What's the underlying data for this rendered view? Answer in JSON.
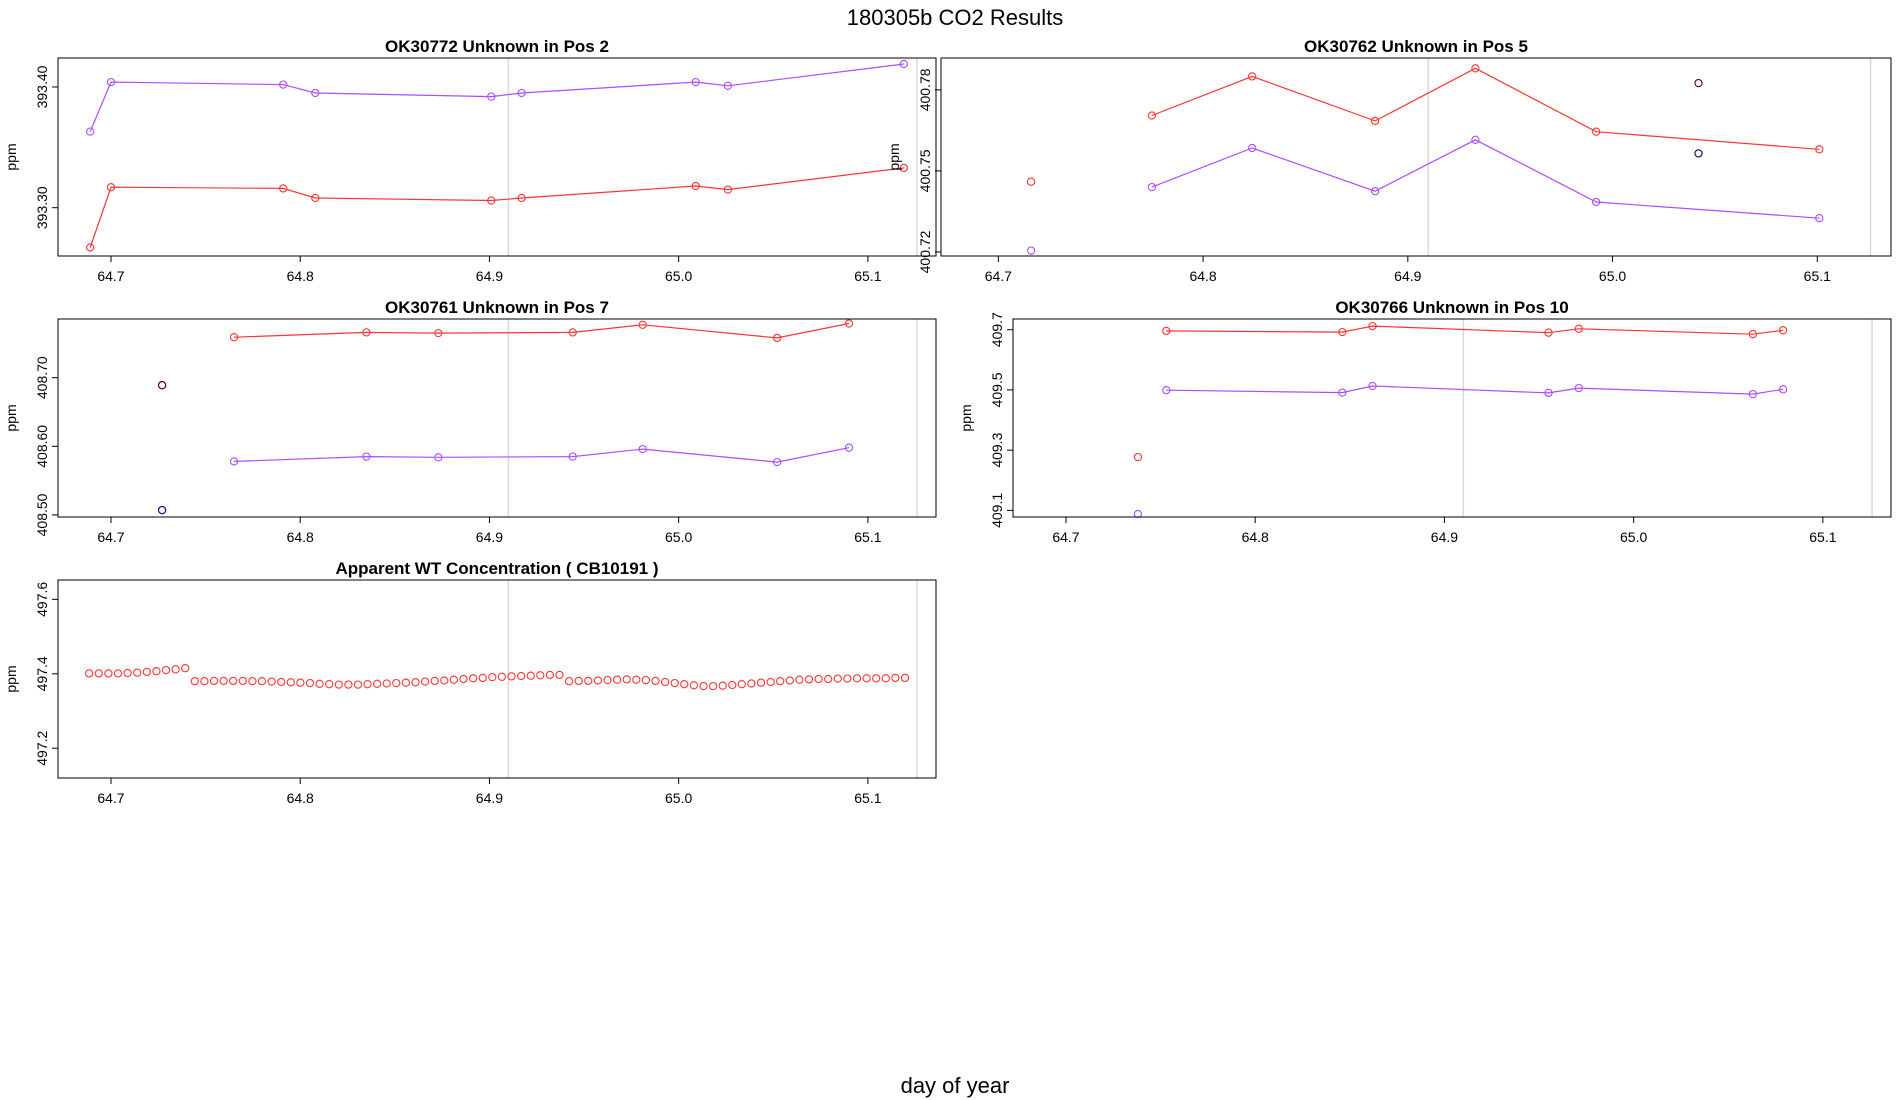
{
  "page": {
    "title": "180305b  CO2 Results",
    "xlabel": "day of year"
  },
  "colors": {
    "red": "#ff3333",
    "purple": "#b04bff",
    "dark_red": "#5a0000",
    "dark_blue": "#1a0066",
    "vline": "#d9d9d9"
  },
  "chart_data": [
    {
      "name": "OK30772",
      "type": "line",
      "title": "OK30772    Unknown in Pos 2",
      "ylabel": "ppm",
      "xlim": [
        64.672,
        65.136
      ],
      "ylim": [
        393.26,
        393.424
      ],
      "xticks": [
        64.7,
        64.8,
        64.9,
        65.0,
        65.1
      ],
      "xtick_labels": [
        "64.7",
        "64.8",
        "64.9",
        "65.0",
        "65.1"
      ],
      "yticks": [
        393.3,
        393.4
      ],
      "ytick_labels": [
        "393.30",
        "393.40"
      ],
      "vlines": [
        64.91,
        65.126
      ],
      "series": [
        {
          "name": "red",
          "color": "#ff3333",
          "connect_from": 0,
          "x": [
            64.689,
            64.7,
            64.791,
            64.808,
            64.901,
            64.917,
            65.009,
            65.026,
            65.119
          ],
          "y": [
            393.267,
            393.317,
            393.316,
            393.308,
            393.306,
            393.308,
            393.318,
            393.315,
            393.333
          ]
        },
        {
          "name": "purple",
          "color": "#b04bff",
          "connect_from": 0,
          "x": [
            64.689,
            64.7,
            64.791,
            64.808,
            64.901,
            64.917,
            65.009,
            65.026,
            65.119
          ],
          "y": [
            393.363,
            393.404,
            393.402,
            393.395,
            393.392,
            393.395,
            393.404,
            393.401,
            393.419
          ]
        }
      ]
    },
    {
      "name": "OK30762",
      "type": "line",
      "title": "OK30762    Unknown in Pos 5",
      "ylabel": "ppm",
      "xlim": [
        64.672,
        65.136
      ],
      "ylim": [
        400.7185,
        400.7918
      ],
      "xticks": [
        64.7,
        64.8,
        64.9,
        65.0,
        65.1
      ],
      "xtick_labels": [
        "64.7",
        "64.8",
        "64.9",
        "65.0",
        "65.1"
      ],
      "yticks": [
        400.72,
        400.75,
        400.78
      ],
      "ytick_labels": [
        "400.72",
        "400.75",
        "400.78"
      ],
      "vlines": [
        64.91,
        65.126
      ],
      "series": [
        {
          "name": "red",
          "color": "#ff3333",
          "connect_from": 1,
          "x": [
            64.716,
            64.775,
            64.824,
            64.884,
            64.933,
            64.992,
            65.101
          ],
          "y": [
            400.746,
            400.7705,
            400.785,
            400.7685,
            400.788,
            400.7645,
            400.758
          ]
        },
        {
          "name": "purple",
          "color": "#b04bff",
          "connect_from": 1,
          "x": [
            64.716,
            64.775,
            64.824,
            64.884,
            64.933,
            64.992,
            65.101
          ],
          "y": [
            400.7205,
            400.744,
            400.7585,
            400.7425,
            400.7615,
            400.7385,
            400.7325
          ]
        },
        {
          "name": "outlier-red",
          "color": "#5a0000",
          "connect_from": 99,
          "x": [
            65.042
          ],
          "y": [
            400.7825
          ]
        },
        {
          "name": "outlier-purple",
          "color": "#1a0066",
          "connect_from": 99,
          "x": [
            65.042
          ],
          "y": [
            400.7565
          ]
        }
      ]
    },
    {
      "name": "OK30761",
      "type": "line",
      "title": "OK30761    Unknown in Pos 7",
      "ylabel": "ppm",
      "xlim": [
        64.672,
        65.136
      ],
      "ylim": [
        408.497,
        408.7855
      ],
      "xticks": [
        64.7,
        64.8,
        64.9,
        65.0,
        65.1
      ],
      "xtick_labels": [
        "64.7",
        "64.8",
        "64.9",
        "65.0",
        "65.1"
      ],
      "yticks": [
        408.5,
        408.6,
        408.7
      ],
      "ytick_labels": [
        "408.50",
        "408.60",
        "408.70"
      ],
      "vlines": [
        64.91,
        65.126
      ],
      "series": [
        {
          "name": "red",
          "color": "#ff3333",
          "connect_from": 1,
          "x": [
            64.727,
            64.765,
            64.835,
            64.873,
            64.944,
            64.981,
            65.052,
            65.09
          ],
          "y": [
            408.689,
            408.759,
            408.766,
            408.765,
            408.766,
            408.777,
            408.758,
            408.779
          ]
        },
        {
          "name": "purple",
          "color": "#b04bff",
          "connect_from": 1,
          "x": [
            64.727,
            64.765,
            64.835,
            64.873,
            64.944,
            64.981,
            65.052,
            65.09
          ],
          "y": [
            408.507,
            408.578,
            408.585,
            408.584,
            408.585,
            408.596,
            408.577,
            408.598
          ]
        },
        {
          "name": "outlier-red",
          "color": "#5a0000",
          "connect_from": 99,
          "x": [
            64.727
          ],
          "y": [
            408.689
          ]
        },
        {
          "name": "outlier-purple",
          "color": "#1a0066",
          "connect_from": 99,
          "x": [
            64.727
          ],
          "y": [
            408.507
          ]
        }
      ]
    },
    {
      "name": "OK30766",
      "type": "line",
      "title": "OK30766    Unknown in Pos 10",
      "ylabel": "ppm",
      "xlim": [
        64.672,
        65.136
      ],
      "ylim": [
        409.078,
        409.7355
      ],
      "xticks": [
        64.7,
        64.8,
        64.9,
        65.0,
        65.1
      ],
      "xtick_labels": [
        "64.7",
        "64.8",
        "64.9",
        "65.0",
        "65.1"
      ],
      "yticks": [
        409.1,
        409.3,
        409.5,
        409.7
      ],
      "ytick_labels": [
        "409.1",
        "409.3",
        "409.5",
        "409.7"
      ],
      "vlines": [
        64.91,
        65.126
      ],
      "series": [
        {
          "name": "red",
          "color": "#ff3333",
          "connect_from": 1,
          "x": [
            64.738,
            64.753,
            64.846,
            64.862,
            64.955,
            64.971,
            65.063,
            65.079
          ],
          "y": [
            409.277,
            409.696,
            409.692,
            409.712,
            409.69,
            409.703,
            409.685,
            409.698
          ]
        },
        {
          "name": "purple",
          "color": "#b04bff",
          "connect_from": 1,
          "x": [
            64.738,
            64.753,
            64.846,
            64.862,
            64.955,
            64.971,
            65.063,
            65.079
          ],
          "y": [
            409.088,
            409.499,
            409.491,
            409.513,
            409.49,
            409.506,
            409.486,
            409.502
          ]
        }
      ]
    },
    {
      "name": "WT",
      "type": "scatter",
      "title": "Apparent WT Concentration ( CB10191 )",
      "ylabel": "ppm",
      "xlim": [
        64.672,
        65.136
      ],
      "ylim": [
        497.12,
        497.652
      ],
      "xticks": [
        64.7,
        64.8,
        64.9,
        65.0,
        65.1
      ],
      "xtick_labels": [
        "64.7",
        "64.8",
        "64.9",
        "65.0",
        "65.1"
      ],
      "yticks": [
        497.2,
        497.4,
        497.6
      ],
      "ytick_labels": [
        "497.2",
        "497.4",
        "497.6"
      ],
      "vlines": [
        64.91,
        65.126
      ],
      "series": [
        {
          "name": "red",
          "color": "#ff3333",
          "connect_from": 99,
          "x_start": 64.6885,
          "x_step": 0.005072,
          "y": [
            497.401,
            497.401,
            497.401,
            497.401,
            497.402,
            497.403,
            497.405,
            497.407,
            497.41,
            497.412,
            497.415,
            497.38,
            497.38,
            497.381,
            497.381,
            497.381,
            497.381,
            497.38,
            497.38,
            497.379,
            497.378,
            497.377,
            497.376,
            497.375,
            497.373,
            497.372,
            497.371,
            497.371,
            497.371,
            497.372,
            497.373,
            497.374,
            497.375,
            497.376,
            497.377,
            497.379,
            497.381,
            497.382,
            497.384,
            497.386,
            497.388,
            497.389,
            497.391,
            497.392,
            497.393,
            497.394,
            497.395,
            497.396,
            497.397,
            497.397,
            497.38,
            497.381,
            497.381,
            497.382,
            497.383,
            497.384,
            497.385,
            497.384,
            497.383,
            497.381,
            497.378,
            497.375,
            497.372,
            497.369,
            497.367,
            497.367,
            497.368,
            497.37,
            497.372,
            497.374,
            497.376,
            497.378,
            497.38,
            497.382,
            497.384,
            497.385,
            497.386,
            497.386,
            497.387,
            497.387,
            497.388,
            497.388,
            497.388,
            497.388,
            497.389,
            497.389
          ]
        }
      ]
    }
  ]
}
